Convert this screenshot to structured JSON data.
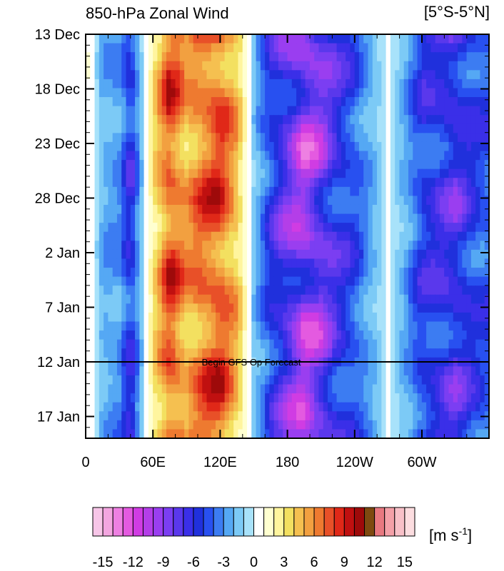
{
  "chart_data": {
    "type": "heatmap",
    "title": "850-hPa Zonal Wind",
    "region": "[5°S-5°N]",
    "units_base": "[m s",
    "units_exp": "-1",
    "units_close": "]",
    "x_ticks": [
      "0",
      "60E",
      "120E",
      "180",
      "120W",
      "60W"
    ],
    "y_ticks": [
      "13 Dec",
      "18 Dec",
      "23 Dec",
      "28 Dec",
      "2 Jan",
      "7 Jan",
      "12 Jan",
      "17 Jan"
    ],
    "annotation": "Begin GFS Op Forecast",
    "annotation_y": "12 Jan",
    "colorbar_labels": [
      "-15",
      "-12",
      "-9",
      "-6",
      "-3",
      "0",
      "3",
      "6",
      "9",
      "12",
      "15"
    ],
    "colorbar_colors": [
      "#f7c6e8",
      "#f3a6e0",
      "#ee80e2",
      "#e45ae0",
      "#d03ce3",
      "#b43ee8",
      "#9a3ef0",
      "#7b3ef2",
      "#5a38ec",
      "#3a2fe8",
      "#2030dc",
      "#2850f0",
      "#3c7cf2",
      "#55a8f4",
      "#7ccaf6",
      "#a8e2fa",
      "#ffffff",
      "#ffffd0",
      "#fff59e",
      "#f3e060",
      "#f5c050",
      "#f2a040",
      "#ee7a30",
      "#e85028",
      "#e02818",
      "#c01010",
      "#9e0a0a",
      "#7e4a10",
      "#e87880",
      "#f4a0a8",
      "#f8c0c8",
      "#fcdde0"
    ],
    "colorbar_min": -16,
    "colorbar_max": 16,
    "longitude_bands": [
      {
        "lon": 5,
        "value": 1
      },
      {
        "lon": 15,
        "value": -3
      },
      {
        "lon": 30,
        "value": -4
      },
      {
        "lon": 40,
        "value": -8
      },
      {
        "lon": 50,
        "value": -2
      },
      {
        "lon": 60,
        "value": 4
      },
      {
        "lon": 75,
        "value": 10
      },
      {
        "lon": 90,
        "value": 7
      },
      {
        "lon": 105,
        "value": 9
      },
      {
        "lon": 120,
        "value": 10
      },
      {
        "lon": 135,
        "value": 6
      },
      {
        "lon": 150,
        "value": -2
      },
      {
        "lon": 165,
        "value": -7
      },
      {
        "lon": 180,
        "value": -10
      },
      {
        "lon": 195,
        "value": -13
      },
      {
        "lon": 210,
        "value": -11
      },
      {
        "lon": 225,
        "value": -8
      },
      {
        "lon": 240,
        "value": -6
      },
      {
        "lon": 255,
        "value": -3
      },
      {
        "lon": 270,
        "value": 0
      },
      {
        "lon": 285,
        "value": -3
      },
      {
        "lon": 300,
        "value": -7
      },
      {
        "lon": 315,
        "value": -8
      },
      {
        "lon": 330,
        "value": -9
      },
      {
        "lon": 345,
        "value": -7
      },
      {
        "lon": 355,
        "value": -6
      }
    ]
  }
}
